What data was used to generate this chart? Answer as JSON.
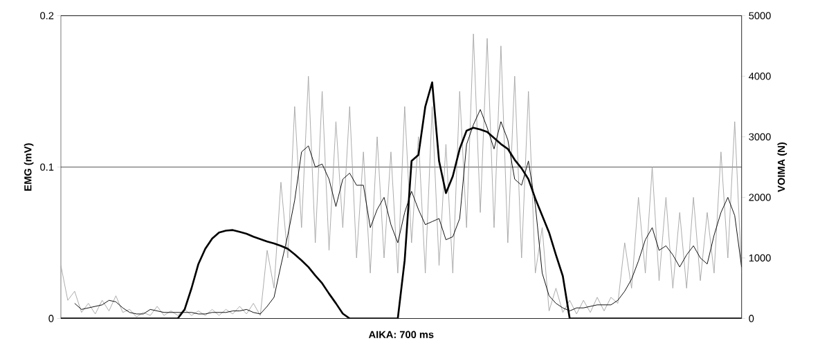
{
  "chart_data": {
    "type": "line",
    "xlabel": "AIKA: 700 ms",
    "ylabel": "EMG (mV)",
    "y2label": "VOIMA (N)",
    "categories": [
      null,
      null,
      null,
      null,
      null,
      null,
      null,
      null,
      null,
      null,
      null,
      null,
      null,
      null,
      null,
      null,
      null,
      null,
      null,
      null,
      null,
      null,
      null,
      null,
      null,
      null,
      null,
      null,
      null,
      null,
      null,
      null,
      null,
      null,
      null,
      null,
      null,
      null,
      null,
      null,
      null,
      null,
      null,
      null,
      null,
      null,
      null,
      null,
      null,
      null,
      null,
      null,
      null,
      null,
      null,
      null,
      null,
      null,
      null,
      null,
      null,
      null,
      null,
      null,
      null,
      null,
      null,
      null,
      null,
      null,
      null,
      null,
      null,
      null,
      null,
      null,
      null,
      null,
      null,
      null,
      null,
      null,
      null,
      null,
      null,
      null,
      null,
      null,
      null,
      null,
      null,
      null,
      null,
      null,
      null,
      null,
      null,
      null,
      null,
      null
    ],
    "ylim": [
      0,
      0.2
    ],
    "yticks": [
      0,
      0.1,
      0.2
    ],
    "y2lim": [
      0,
      5000
    ],
    "y2ticks": [
      0,
      1000,
      2000,
      3000,
      4000,
      5000
    ],
    "grid": "y",
    "series": [
      {
        "color": "#a6a6a6",
        "values": [
          0.035,
          0.012,
          0.018,
          0.004,
          0.01,
          0.003,
          0.012,
          0.005,
          0.015,
          0.004,
          0.006,
          0.001,
          0.004,
          0.002,
          0.008,
          0.002,
          0.005,
          0.002,
          0.006,
          0.002,
          0.005,
          0.002,
          0.006,
          0.002,
          0.006,
          0.003,
          0.008,
          0.003,
          0.01,
          0.002,
          0.045,
          0.02,
          0.09,
          0.04,
          0.14,
          0.06,
          0.16,
          0.05,
          0.15,
          0.045,
          0.13,
          0.06,
          0.14,
          0.04,
          0.11,
          0.03,
          0.12,
          0.04,
          0.11,
          0.03,
          0.14,
          0.05,
          0.12,
          0.03,
          0.14,
          0.035,
          0.115,
          0.03,
          0.15,
          0.06,
          0.188,
          0.07,
          0.185,
          0.06,
          0.18,
          0.05,
          0.16,
          0.04,
          0.15,
          0.03,
          0.06,
          0.005,
          0.02,
          0.004,
          0.012,
          0.003,
          0.012,
          0.004,
          0.014,
          0.005,
          0.014,
          0.01,
          0.05,
          0.02,
          0.08,
          0.03,
          0.1,
          0.025,
          0.08,
          0.02,
          0.07,
          0.02,
          0.08,
          0.025,
          0.07,
          0.03,
          0.11,
          0.04,
          0.13,
          0.03
        ]
      },
      {
        "color": "#000000",
        "values": [
          null,
          null,
          0.01,
          0.006,
          0.007,
          0.008,
          0.009,
          0.012,
          0.011,
          0.007,
          0.004,
          0.003,
          0.003,
          0.006,
          0.005,
          0.004,
          0.004,
          0.004,
          0.004,
          0.004,
          0.003,
          0.003,
          0.004,
          0.004,
          0.004,
          0.005,
          0.005,
          0.006,
          0.004,
          0.003,
          0.008,
          0.014,
          0.035,
          0.055,
          0.078,
          0.11,
          0.114,
          0.1,
          0.102,
          0.092,
          0.074,
          0.092,
          0.096,
          0.088,
          0.088,
          0.06,
          0.072,
          0.08,
          0.062,
          0.05,
          0.07,
          0.084,
          0.072,
          0.062,
          0.064,
          0.066,
          0.052,
          0.054,
          0.066,
          0.115,
          0.128,
          0.138,
          0.126,
          0.112,
          0.13,
          0.118,
          0.092,
          0.088,
          0.104,
          0.075,
          0.03,
          0.015,
          0.01,
          0.007,
          0.005,
          0.007,
          0.007,
          0.008,
          0.009,
          0.009,
          0.009,
          0.012,
          0.018,
          0.026,
          0.038,
          0.052,
          0.06,
          0.045,
          0.048,
          0.042,
          0.034,
          0.042,
          0.048,
          0.04,
          0.036,
          0.055,
          0.07,
          0.08,
          0.068,
          0.034
        ]
      },
      {
        "color": "#000000",
        "axis": "y2",
        "values": [
          0,
          0,
          0,
          0,
          0,
          0,
          0,
          0,
          0,
          0,
          0,
          0,
          0,
          0,
          0,
          0,
          0,
          0,
          150,
          500,
          900,
          1150,
          1320,
          1420,
          1450,
          1460,
          1430,
          1400,
          1350,
          1310,
          1270,
          1240,
          1200,
          1150,
          1060,
          960,
          850,
          710,
          580,
          410,
          250,
          80,
          0,
          0,
          0,
          0,
          0,
          0,
          0,
          0,
          960,
          2600,
          2700,
          3500,
          3900,
          2600,
          2070,
          2350,
          2800,
          3100,
          3150,
          3120,
          3080,
          2980,
          2880,
          2800,
          2620,
          2480,
          2300,
          1980,
          1700,
          1420,
          1050,
          700,
          0,
          0,
          0,
          0,
          0,
          0,
          0,
          0,
          0,
          0,
          0,
          0,
          0,
          0,
          0,
          0,
          0,
          0,
          0,
          0,
          0,
          0,
          0,
          0,
          0,
          0
        ]
      }
    ]
  }
}
